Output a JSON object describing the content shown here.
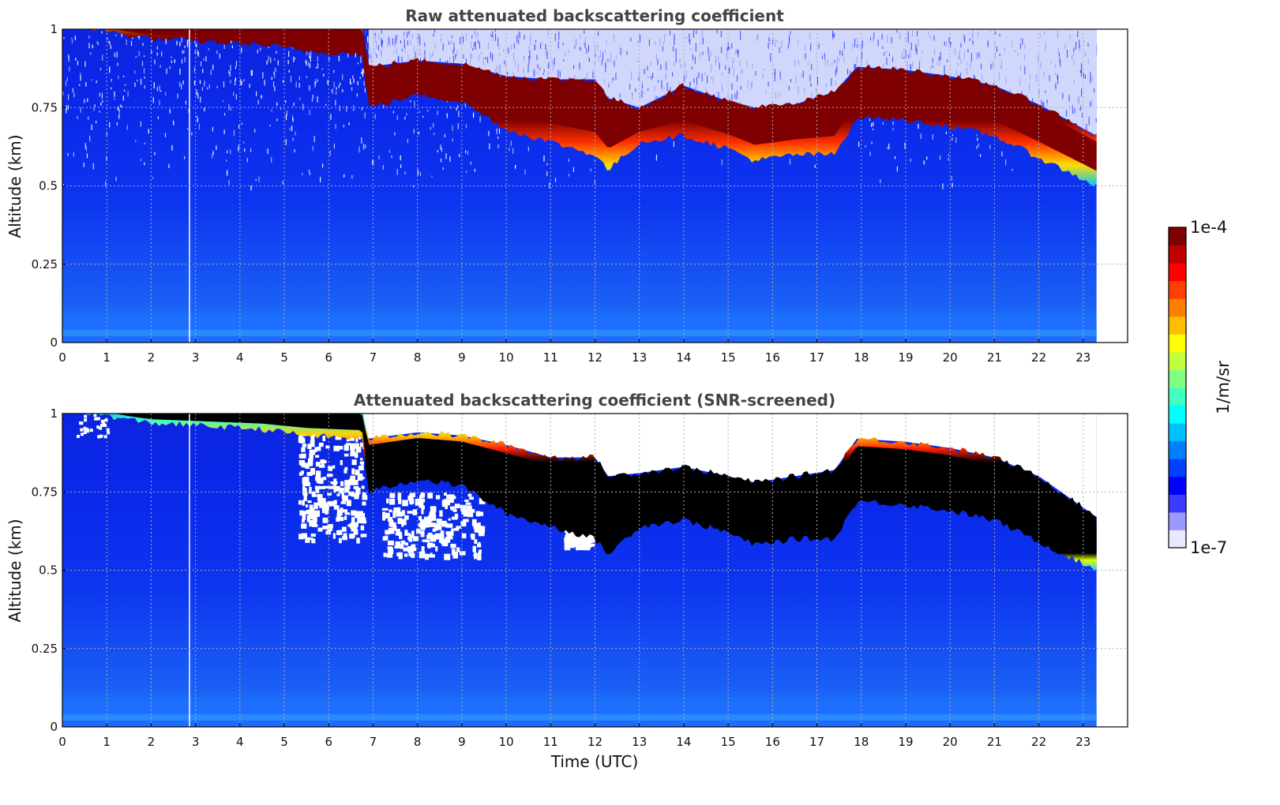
{
  "chart_data": [
    {
      "type": "heatmap",
      "title": "Raw attenuated backscattering coefficient",
      "xlabel": "",
      "ylabel": "Altitude (km)",
      "xlim": [
        0,
        24
      ],
      "ylim": [
        0,
        1
      ],
      "x_ticks": [
        "0",
        "1",
        "2",
        "3",
        "4",
        "5",
        "6",
        "7",
        "8",
        "9",
        "10",
        "11",
        "12",
        "13",
        "14",
        "15",
        "16",
        "17",
        "18",
        "19",
        "20",
        "21",
        "22",
        "23"
      ],
      "y_ticks": [
        "0",
        "0.25",
        "0.5",
        "0.75",
        "1"
      ],
      "grid": true,
      "data_end_time": 23.3,
      "data_gap_time": 2.85,
      "colorscale": "jet",
      "log_scale": true,
      "background_value": "1e-6",
      "noise": "high above 0.5 km",
      "saturation_color": "#7f0000",
      "cloud_layer": {
        "time": [
          0,
          1.5,
          2.0,
          4.5,
          5.5,
          6.75,
          6.9,
          8,
          9,
          10,
          11,
          12,
          12.3,
          13,
          14,
          15,
          15.6,
          16.5,
          17.4,
          17.9,
          19,
          20,
          21,
          22,
          23.3
        ],
        "base_km": [
          1.02,
          0.98,
          0.97,
          0.95,
          0.93,
          0.92,
          0.75,
          0.79,
          0.77,
          0.68,
          0.64,
          0.6,
          0.55,
          0.64,
          0.66,
          0.62,
          0.58,
          0.6,
          0.6,
          0.72,
          0.71,
          0.69,
          0.66,
          0.59,
          0.5
        ],
        "top_km": [
          1.05,
          1.02,
          1.01,
          1.01,
          1.01,
          1.01,
          0.88,
          0.9,
          0.89,
          0.85,
          0.84,
          0.84,
          0.78,
          0.75,
          0.82,
          0.77,
          0.75,
          0.76,
          0.8,
          0.88,
          0.87,
          0.85,
          0.82,
          0.76,
          0.66
        ]
      }
    },
    {
      "type": "heatmap",
      "title": "Attenuated backscattering coefficient (SNR-screened)",
      "xlabel": "Time (UTC)",
      "ylabel": "Altitude (km)",
      "xlim": [
        0,
        24
      ],
      "ylim": [
        0,
        1
      ],
      "x_ticks": [
        "0",
        "1",
        "2",
        "3",
        "4",
        "5",
        "6",
        "7",
        "8",
        "9",
        "10",
        "11",
        "12",
        "13",
        "14",
        "15",
        "16",
        "17",
        "18",
        "19",
        "20",
        "21",
        "22",
        "23"
      ],
      "y_ticks": [
        "0",
        "0.25",
        "0.5",
        "0.75",
        "1"
      ],
      "grid": true,
      "data_end_time": 23.3,
      "data_gap_time": 2.85,
      "colorscale": "jet",
      "log_scale": true,
      "background_value": "1e-6",
      "screened_above_cloud": true,
      "saturation_color": "#000000",
      "screened_patches": [
        {
          "t0": 5.3,
          "t1": 6.8,
          "z0": 0.6,
          "z1": 0.95
        },
        {
          "t0": 7.2,
          "t1": 9.4,
          "z0": 0.55,
          "z1": 0.75
        },
        {
          "t0": 11.3,
          "t1": 11.9,
          "z0": 0.58,
          "z1": 0.7
        }
      ],
      "cloud_layer": {
        "time": [
          0,
          1.5,
          2.0,
          4.5,
          5.5,
          6.75,
          6.9,
          8,
          9,
          10,
          11,
          12,
          12.3,
          13,
          14,
          15,
          15.6,
          16.5,
          17.4,
          17.9,
          19,
          20,
          21,
          22,
          23.3
        ],
        "base_km": [
          1.02,
          0.98,
          0.97,
          0.95,
          0.93,
          0.92,
          0.75,
          0.79,
          0.77,
          0.68,
          0.64,
          0.6,
          0.55,
          0.64,
          0.66,
          0.62,
          0.58,
          0.6,
          0.6,
          0.72,
          0.71,
          0.69,
          0.66,
          0.59,
          0.5
        ],
        "top_km": [
          1.05,
          1.02,
          1.01,
          1.01,
          1.01,
          1.01,
          0.92,
          0.94,
          0.93,
          0.9,
          0.86,
          0.86,
          0.8,
          0.81,
          0.83,
          0.8,
          0.78,
          0.8,
          0.82,
          0.92,
          0.91,
          0.89,
          0.86,
          0.8,
          0.67
        ]
      }
    }
  ],
  "colorbar": {
    "label": "1/m/sr",
    "max_label": "1e-4",
    "min_label": "1e-7",
    "colors": [
      "#e8e8ff",
      "#9999ff",
      "#3b3bff",
      "#0000ff",
      "#0040ff",
      "#0080ff",
      "#00bfff",
      "#00ffff",
      "#40ffbf",
      "#80ff80",
      "#bfff40",
      "#ffff00",
      "#ffbf00",
      "#ff8000",
      "#ff4000",
      "#ff0000",
      "#bf0000",
      "#7f0000"
    ]
  }
}
